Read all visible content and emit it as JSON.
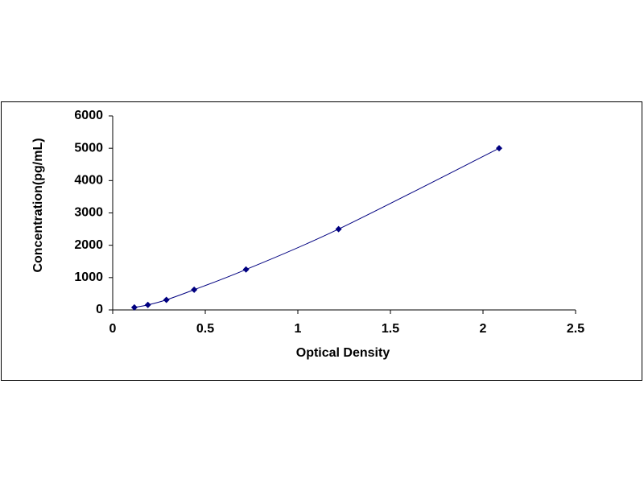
{
  "chart_data": {
    "type": "scatter",
    "x_label": "Optical Density",
    "y_label": "Concentration(pg/mL)",
    "series": [
      {
        "color": "#000080",
        "x": [
          0.117,
          0.19,
          0.29,
          0.44,
          0.72,
          1.22,
          2.087
        ],
        "values": [
          78,
          156,
          312,
          625,
          1250,
          2500,
          5000
        ]
      }
    ],
    "trendline": true,
    "xlim": [
      0,
      2.5
    ],
    "xticks": [
      0,
      0.5,
      1,
      1.5,
      2,
      2.5
    ],
    "ylim": [
      0,
      6000
    ],
    "yticks": [
      0,
      1000,
      2000,
      3000,
      4000,
      5000,
      6000
    ],
    "grid": false
  }
}
